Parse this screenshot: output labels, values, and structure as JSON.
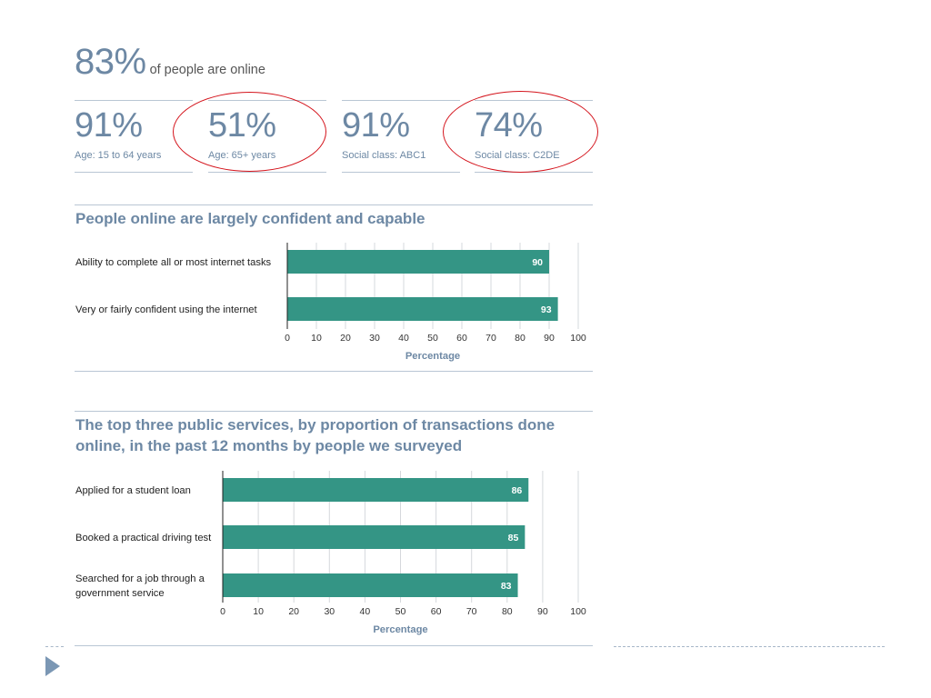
{
  "headline": {
    "value": "83%",
    "text": "of people are online"
  },
  "stats": [
    {
      "value": "91%",
      "label": "Age: 15 to 64 years",
      "circled": false
    },
    {
      "value": "51%",
      "label": "Age: 65+ years",
      "circled": true
    },
    {
      "value": "91%",
      "label": "Social class: ABC1",
      "circled": false
    },
    {
      "value": "74%",
      "label": "Social class: C2DE",
      "circled": true
    }
  ],
  "section1": {
    "title": "People online are largely confident and capable"
  },
  "section2": {
    "title_line1": "The top three public services, by proportion of transactions done",
    "title_line2": "online, in the past 12 months by people we surveyed"
  },
  "colors": {
    "bar": "#349585",
    "accent": "#6d88a4",
    "highlight_ring": "#d4141c"
  },
  "chart_data": [
    {
      "type": "bar",
      "orientation": "horizontal",
      "categories": [
        "Ability to complete all or most internet tasks",
        "Very or fairly confident using the internet"
      ],
      "values": [
        90,
        93
      ],
      "xlabel": "Percentage",
      "xlim": [
        0,
        100
      ],
      "ticks": [
        0,
        10,
        20,
        30,
        40,
        50,
        60,
        70,
        80,
        90,
        100
      ],
      "grid": true
    },
    {
      "type": "bar",
      "orientation": "horizontal",
      "categories": [
        "Applied for a student loan",
        "Booked a practical driving test",
        "Searched for a job through a government service"
      ],
      "values": [
        86,
        85,
        83
      ],
      "xlabel": "Percentage",
      "xlim": [
        0,
        100
      ],
      "ticks": [
        0,
        10,
        20,
        30,
        40,
        50,
        60,
        70,
        80,
        90,
        100
      ],
      "grid": true
    }
  ]
}
